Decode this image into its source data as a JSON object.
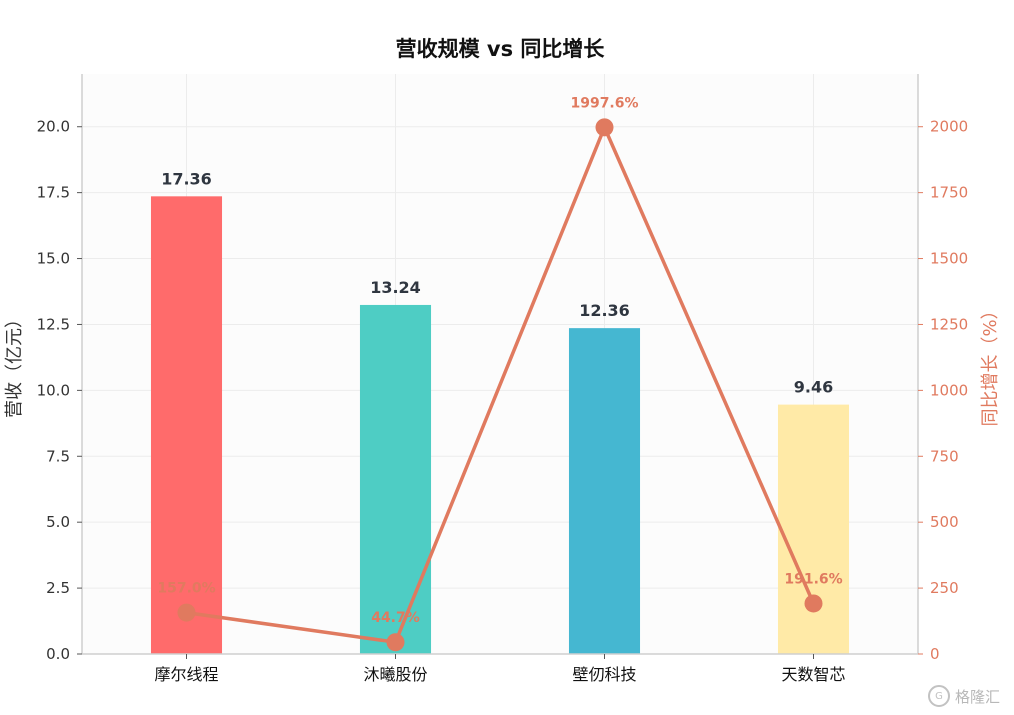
{
  "chart_data": {
    "type": "bar",
    "title": "营收规模 vs 同比增长",
    "categories": [
      "摩尔线程",
      "沐曦股份",
      "壁仞科技",
      "天数智芯"
    ],
    "series": [
      {
        "kind": "bar",
        "axis": "left",
        "values": [
          17.36,
          13.24,
          12.36,
          9.46
        ],
        "value_labels": [
          "17.36",
          "13.24",
          "12.36",
          "9.46"
        ],
        "colors": [
          "#ff6b6b",
          "#4ecdc4",
          "#45b7d1",
          "#ffeaa7"
        ]
      },
      {
        "kind": "line",
        "axis": "right",
        "values": [
          157.0,
          44.7,
          1997.6,
          191.6
        ],
        "value_labels": [
          "157.0%",
          "44.7%",
          "1997.6%",
          "191.6%"
        ],
        "color": "#e07a5f"
      }
    ],
    "ylabel": "营收（亿元）",
    "ylabel_right": "同比增长（%）",
    "ylim": [
      0,
      22
    ],
    "ylim_right": [
      0,
      2200
    ],
    "yticks": [
      0.0,
      2.5,
      5.0,
      7.5,
      10.0,
      12.5,
      15.0,
      17.5,
      20.0
    ],
    "yticks_right": [
      0,
      250,
      500,
      750,
      1000,
      1250,
      1500,
      1750,
      2000
    ],
    "grid": true
  },
  "watermark": {
    "text": "格隆汇"
  }
}
